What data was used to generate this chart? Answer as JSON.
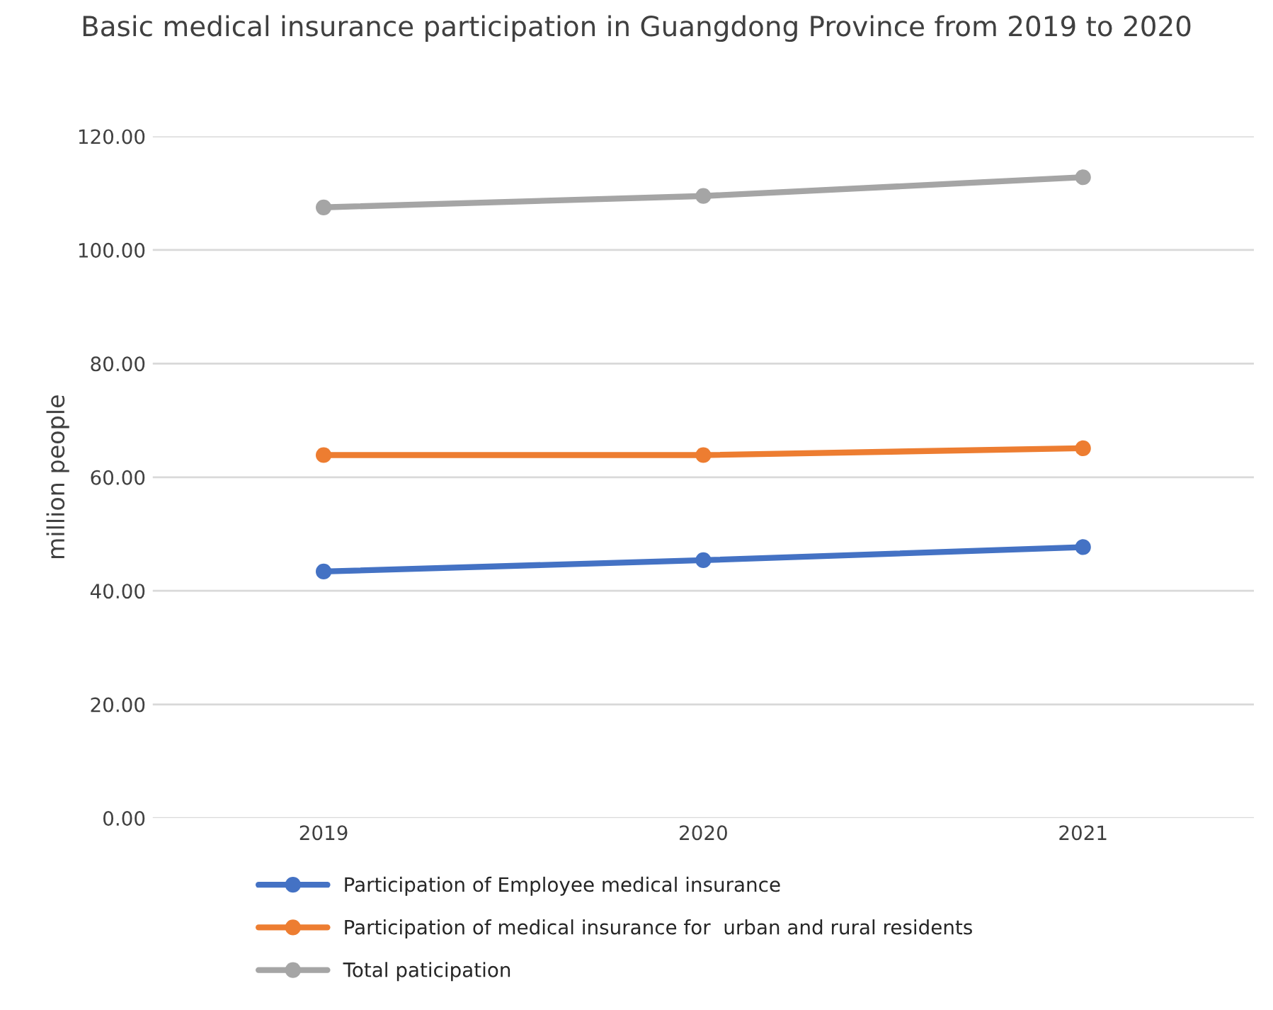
{
  "chart_data": {
    "type": "line",
    "title": "Basic medical insurance participation in Guangdong Province from 2019 to 2020",
    "ylabel": "million people",
    "categories": [
      "2019",
      "2020",
      "2021"
    ],
    "series": [
      {
        "name": "Participation of Employee medical insurance",
        "color": "#4472c4",
        "values": [
          43.4,
          45.4,
          47.7
        ]
      },
      {
        "name": "Participation of medical insurance for  urban and rural residents",
        "color": "#ed7d31",
        "values": [
          63.9,
          63.9,
          65.1
        ]
      },
      {
        "name": "Total paticipation",
        "color": "#a5a5a5",
        "values": [
          107.5,
          109.5,
          112.8
        ]
      }
    ],
    "ylim": [
      0,
      120
    ],
    "yticks": [
      {
        "value": 0,
        "label": "0.00"
      },
      {
        "value": 20,
        "label": "20.00"
      },
      {
        "value": 40,
        "label": "40.00"
      },
      {
        "value": 60,
        "label": "60.00"
      },
      {
        "value": 80,
        "label": "80.00"
      },
      {
        "value": 100,
        "label": "100.00"
      },
      {
        "value": 120,
        "label": "120.00"
      }
    ],
    "grid": "y",
    "legend": "bottom",
    "marker": "circle",
    "line_style": "solid"
  }
}
